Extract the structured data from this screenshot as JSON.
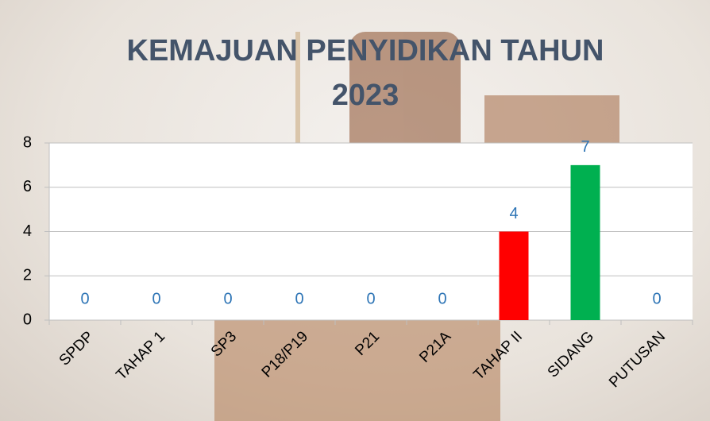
{
  "chart_data": {
    "type": "bar",
    "title": "KEMAJUAN PENYIDIKAN TAHUN 2023",
    "categories": [
      "SPDP",
      "TAHAP 1",
      "SP3",
      "P18/P19",
      "P21",
      "P21A",
      "TAHAP II",
      "SIDANG",
      "PUTUSAN"
    ],
    "values": [
      0,
      0,
      0,
      0,
      0,
      0,
      4,
      7,
      0
    ],
    "colors": [
      "#4472c4",
      "#4472c4",
      "#4472c4",
      "#4472c4",
      "#4472c4",
      "#4472c4",
      "#ff0000",
      "#00b050",
      "#4472c4"
    ],
    "ylim": [
      0,
      8
    ],
    "yticks": [
      0,
      2,
      4,
      6,
      8
    ],
    "grid": true,
    "data_labels": true
  }
}
